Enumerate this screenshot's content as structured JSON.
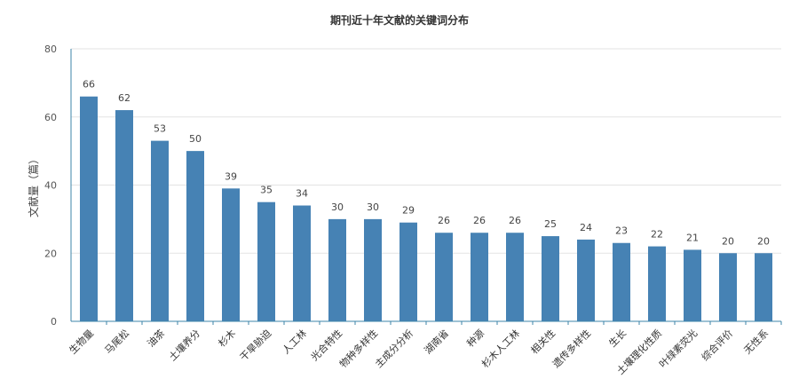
{
  "chart_data": {
    "type": "bar",
    "title": "期刊近十年文献的关键词分布",
    "xlabel": "",
    "ylabel": "文献量（篇）",
    "ylim": [
      0,
      80
    ],
    "yticks": [
      0,
      20,
      40,
      60,
      80
    ],
    "grid": true,
    "bar_color": "#4682b4",
    "categories": [
      "生物量",
      "马尾松",
      "油茶",
      "土壤养分",
      "杉木",
      "干旱胁迫",
      "人工林",
      "光合特性",
      "物种多样性",
      "主成分分析",
      "湖南省",
      "种源",
      "杉木人工林",
      "相关性",
      "遗传多样性",
      "生长",
      "土壤理化性质",
      "叶绿素荧光",
      "综合评价",
      "无性系"
    ],
    "values": [
      66,
      62,
      53,
      50,
      39,
      35,
      34,
      30,
      30,
      29,
      26,
      26,
      26,
      25,
      24,
      23,
      22,
      21,
      20,
      20
    ]
  }
}
